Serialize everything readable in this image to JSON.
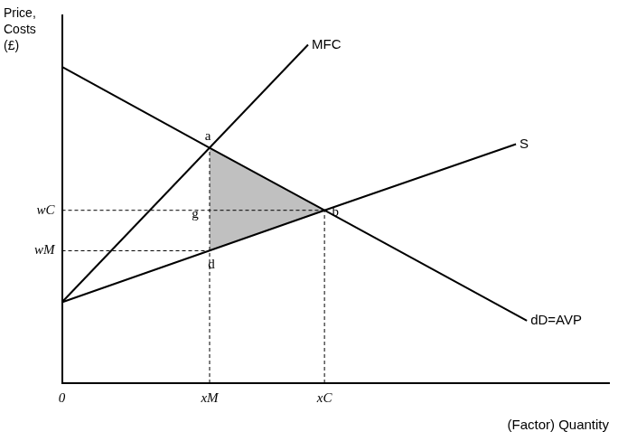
{
  "chart_data": {
    "type": "line",
    "y_label": "Price, Costs (£)",
    "x_label": "(Factor) Quantity",
    "xlim": [
      0,
      100
    ],
    "ylim": [
      0,
      100
    ],
    "xticks": [
      0,
      {
        "value": 27,
        "label": "xM"
      },
      {
        "value": 48,
        "label": "xC"
      }
    ],
    "yticks": [
      {
        "value": 47,
        "label": "wC"
      },
      {
        "value": 36,
        "label": "wM"
      }
    ],
    "grid": false,
    "color": "#000000",
    "series": [
      {
        "name": "MFC",
        "x": [
          0,
          27,
          45
        ],
        "values": [
          22,
          64,
          92
        ],
        "color": "#000000"
      },
      {
        "name": "S",
        "x": [
          0,
          48,
          83
        ],
        "values": [
          22,
          47,
          65
        ],
        "color": "#000000"
      },
      {
        "name": "dD=AVP",
        "x": [
          0,
          27,
          48,
          85
        ],
        "values": [
          86,
          64,
          47,
          17
        ],
        "color": "#000000"
      }
    ],
    "points": [
      {
        "label": "a",
        "x": 27,
        "y": 64
      },
      {
        "label": "b",
        "x": 48,
        "y": 47
      },
      {
        "label": "d",
        "x": 27,
        "y": 36
      },
      {
        "label": "g",
        "x": 27,
        "y": 47
      }
    ],
    "shaded": {
      "points": [
        "a",
        "b",
        "d"
      ],
      "color": "#c0c0c0"
    }
  }
}
